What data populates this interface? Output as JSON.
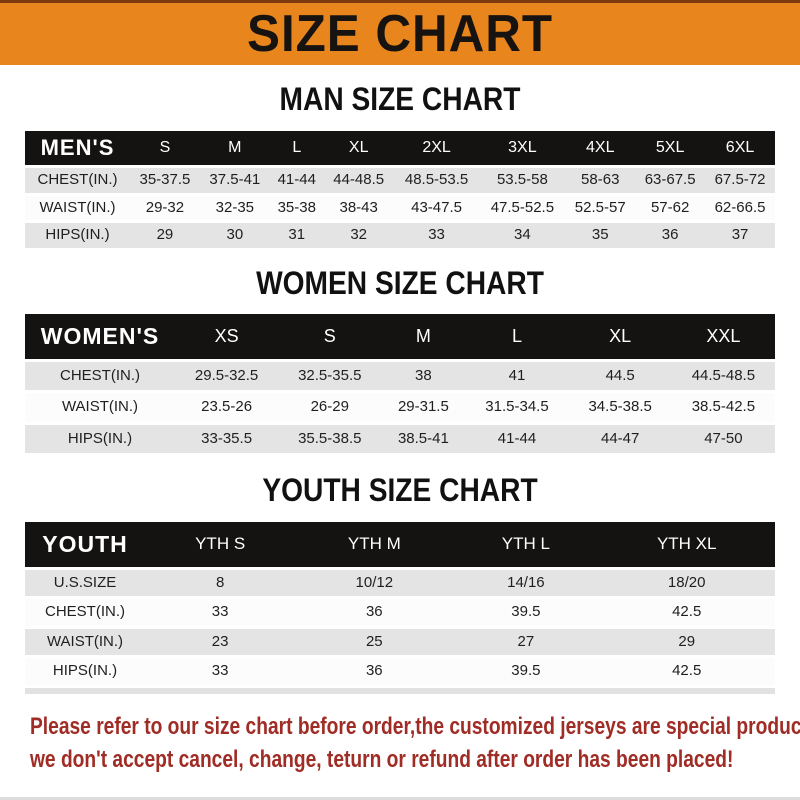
{
  "banner": {
    "title": "SIZE CHART"
  },
  "sections": [
    {
      "heading": "MAN SIZE CHART",
      "header_label": "MEN'S",
      "columns": [
        "S",
        "M",
        "L",
        "XL",
        "2XL",
        "3XL",
        "4XL",
        "5XL",
        "6XL"
      ],
      "rows": [
        {
          "label": "CHEST(IN.)",
          "values": [
            "35-37.5",
            "37.5-41",
            "41-44",
            "44-48.5",
            "48.5-53.5",
            "53.5-58",
            "58-63",
            "63-67.5",
            "67.5-72"
          ]
        },
        {
          "label": "WAIST(IN.)",
          "values": [
            "29-32",
            "32-35",
            "35-38",
            "38-43",
            "43-47.5",
            "47.5-52.5",
            "52.5-57",
            "57-62",
            "62-66.5"
          ]
        },
        {
          "label": "HIPS(IN.)",
          "values": [
            "29",
            "30",
            "31",
            "32",
            "33",
            "34",
            "35",
            "36",
            "37"
          ]
        }
      ]
    },
    {
      "heading": "WOMEN SIZE CHART",
      "header_label": "WOMEN'S",
      "columns": [
        "XS",
        "S",
        "M",
        "L",
        "XL",
        "XXL"
      ],
      "rows": [
        {
          "label": "CHEST(IN.)",
          "values": [
            "29.5-32.5",
            "32.5-35.5",
            "38",
            "41",
            "44.5",
            "44.5-48.5"
          ]
        },
        {
          "label": "WAIST(IN.)",
          "values": [
            "23.5-26",
            "26-29",
            "29-31.5",
            "31.5-34.5",
            "34.5-38.5",
            "38.5-42.5"
          ]
        },
        {
          "label": "HIPS(IN.)",
          "values": [
            "33-35.5",
            "35.5-38.5",
            "38.5-41",
            "41-44",
            "44-47",
            "47-50"
          ]
        }
      ]
    },
    {
      "heading": "YOUTH SIZE CHART",
      "header_label": "YOUTH",
      "columns": [
        "YTH S",
        "YTH M",
        "YTH L",
        "YTH XL"
      ],
      "rows": [
        {
          "label": "U.S.SIZE",
          "values": [
            "8",
            "10/12",
            "14/16",
            "18/20"
          ]
        },
        {
          "label": "CHEST(IN.)",
          "values": [
            "33",
            "36",
            "39.5",
            "42.5"
          ]
        },
        {
          "label": "WAIST(IN.)",
          "values": [
            "23",
            "25",
            "27",
            "29"
          ]
        },
        {
          "label": "HIPS(IN.)",
          "values": [
            "33",
            "36",
            "39.5",
            "42.5"
          ]
        }
      ]
    }
  ],
  "footer": {
    "line1": "Please refer to our size chart before order,the customized jerseys are special products,",
    "line2": "we don't accept cancel, change, teturn or refund after order has been placed!"
  },
  "colors": {
    "banner_orange": "#E8861D",
    "banner_top_border": "#7E3B11",
    "table_header_black": "#151312",
    "row_gray": "#E4E4E4",
    "row_white": "#FCFCFC",
    "footer_red": "#A02C26"
  }
}
